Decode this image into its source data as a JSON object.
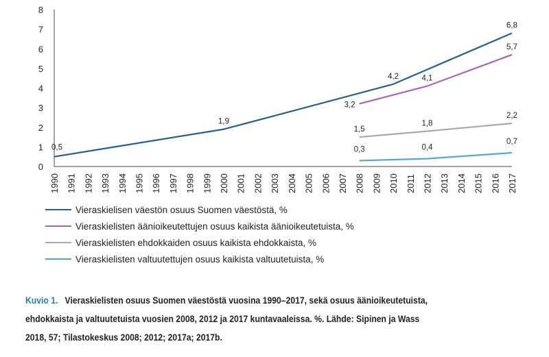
{
  "chart_data": {
    "type": "line",
    "title": "",
    "xlabel": "",
    "ylabel": "",
    "ylim": [
      0,
      8
    ],
    "yticks": [
      "0",
      "1",
      "2",
      "3",
      "4",
      "5",
      "6",
      "7",
      "8"
    ],
    "xticks": [
      "1990",
      "1991",
      "1992",
      "1993",
      "1994",
      "1995",
      "1996",
      "1997",
      "1998",
      "1999",
      "2000",
      "2001",
      "2002",
      "2003",
      "2004",
      "2005",
      "2006",
      "2007",
      "2008",
      "2009",
      "2010",
      "2011",
      "2012",
      "2013",
      "2014",
      "2015",
      "2016",
      "2017"
    ],
    "grid": false,
    "legend_position": "bottom",
    "series": [
      {
        "name": "Vieraskielisen väestön osuus Suomen väestöstä, %",
        "color": "#215f97",
        "points": [
          {
            "x": 1990,
            "y": 0.5,
            "label": "0,5"
          },
          {
            "x": 2000,
            "y": 1.9,
            "label": "1,9"
          },
          {
            "x": 2010,
            "y": 4.2,
            "label": "4,2"
          },
          {
            "x": 2017,
            "y": 6.8,
            "label": "6,8"
          }
        ]
      },
      {
        "name": "Vieraskielisten äänioikeutettujen osuus kaikista äänioikeutetuista, %",
        "color": "#a764b4",
        "points": [
          {
            "x": 2008,
            "y": 3.2,
            "label": "3,2"
          },
          {
            "x": 2012,
            "y": 4.1,
            "label": "4,1"
          },
          {
            "x": 2017,
            "y": 5.7,
            "label": "5,7"
          }
        ]
      },
      {
        "name": "Vieraskielisten ehdokkaiden osuus kaikista ehdokkaista, %",
        "color": "#a8a8a8",
        "points": [
          {
            "x": 2008,
            "y": 1.5,
            "label": "1,5"
          },
          {
            "x": 2012,
            "y": 1.8,
            "label": "1,8"
          },
          {
            "x": 2017,
            "y": 2.2,
            "label": "2,2"
          }
        ]
      },
      {
        "name": "Vieraskielisten valtuutettujen osuus kaikista valtuutetuista, %",
        "color": "#47a6e0",
        "points": [
          {
            "x": 2008,
            "y": 0.3,
            "label": "0,3"
          },
          {
            "x": 2012,
            "y": 0.4,
            "label": "0,4"
          },
          {
            "x": 2017,
            "y": 0.7,
            "label": "0,7"
          }
        ]
      }
    ]
  },
  "caption": {
    "label": "Kuvio 1.",
    "line1": "Vieraskielisten osuus Suomen väestöstä vuosina 1990–2017, sekä osuus äänioikeutetuista,",
    "line2": "ehdokkaista ja valtuutetuista vuosien 2008, 2012 ja 2017 kuntavaaleissa. %. Lähde: Sipinen ja Wass",
    "line3": "2018, 57; Tilastokeskus 2008; 2012; 2017a; 2017b."
  }
}
